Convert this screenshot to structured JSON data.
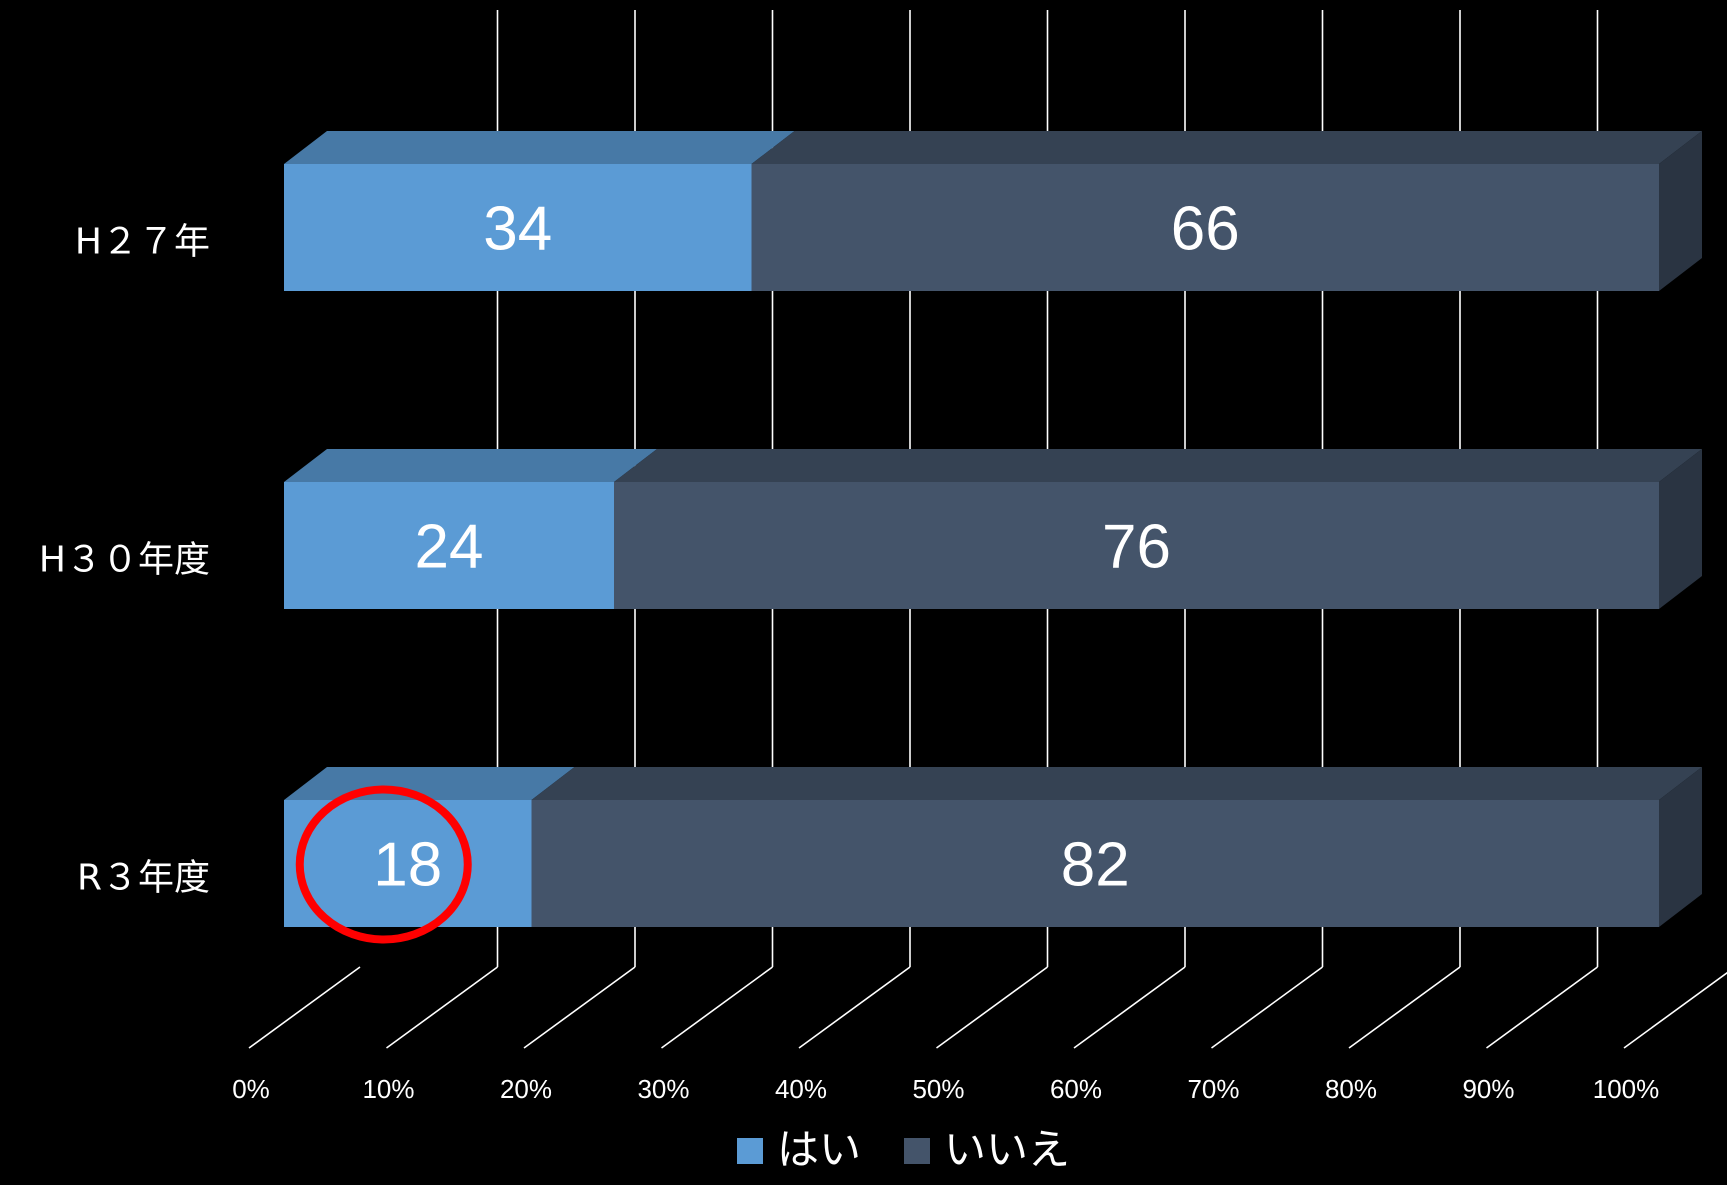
{
  "chart_data": {
    "type": "bar",
    "orientation": "horizontal",
    "stacked": true,
    "percent_stacked": true,
    "three_d": true,
    "categories": [
      "H２７年",
      "H３０年度",
      "R３年度"
    ],
    "series": [
      {
        "name": "はい",
        "values": [
          34,
          24,
          18
        ],
        "color": "#5b9bd5"
      },
      {
        "name": "いいえ",
        "values": [
          66,
          76,
          82
        ],
        "color": "#44546a"
      }
    ],
    "x_ticks": [
      "0%",
      "10%",
      "20%",
      "30%",
      "40%",
      "50%",
      "60%",
      "70%",
      "80%",
      "90%",
      "100%"
    ],
    "xlim": [
      0,
      100
    ],
    "grid": true,
    "legend_position": "bottom",
    "highlight": {
      "category": "R３年度",
      "series": "はい",
      "shape": "circle",
      "color": "#ff0000"
    }
  },
  "colors": {
    "background": "#000000",
    "gridline": "#ffffff",
    "text": "#ffffff"
  }
}
